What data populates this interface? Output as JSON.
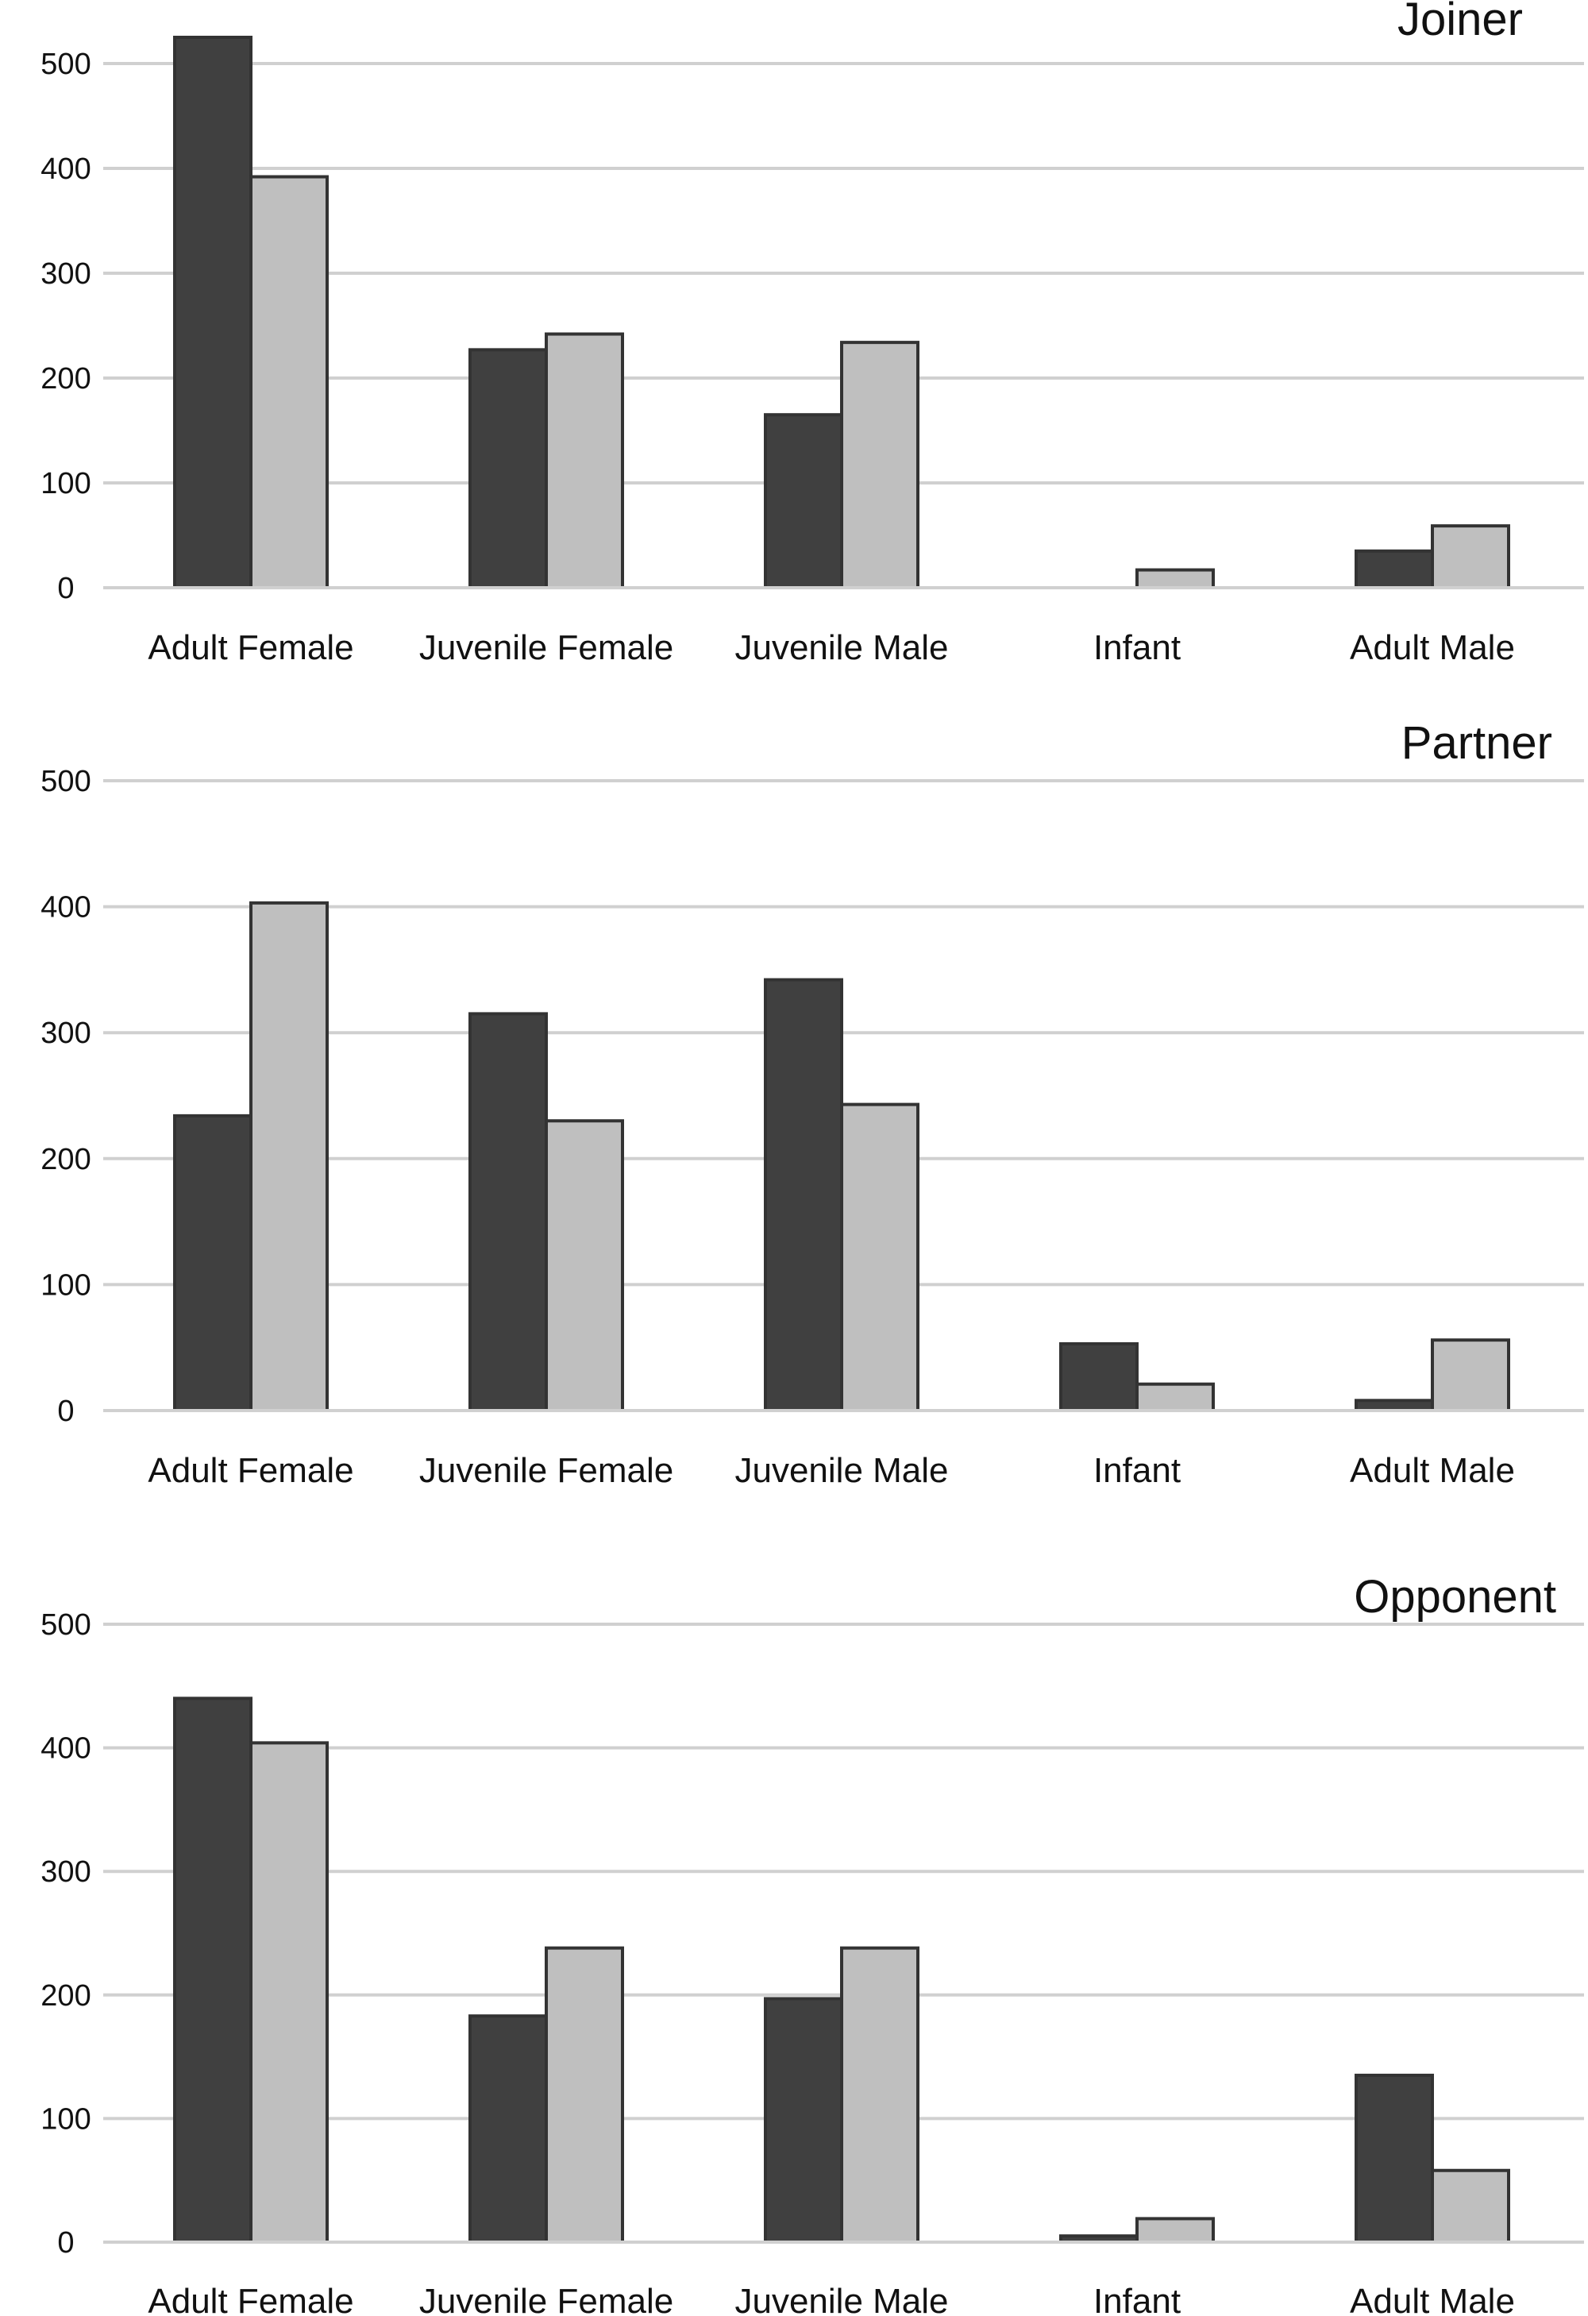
{
  "colors": {
    "series_a": "#404040",
    "series_b": "#bfbfbf",
    "grid": "#d0d0d0",
    "text": "#111111",
    "bar_outline": "#333333"
  },
  "chart_data": [
    {
      "type": "bar",
      "title": "Joiner",
      "categories": [
        "Adult Female",
        "Juvenile Female",
        "Juvenile Male",
        "Infant",
        "Adult Male"
      ],
      "series": [
        {
          "values": [
            525,
            227,
            165,
            0,
            35
          ]
        },
        {
          "values": [
            392,
            242,
            234,
            17,
            59
          ]
        }
      ],
      "yticks": [
        "0",
        "100",
        "200",
        "300",
        "400",
        "500"
      ],
      "ylim": [
        0,
        500
      ],
      "grid": true
    },
    {
      "type": "bar",
      "title": "Partner",
      "categories": [
        "Adult Female",
        "Juvenile Female",
        "Juvenile Male",
        "Infant",
        "Adult Male"
      ],
      "series": [
        {
          "values": [
            234,
            315,
            342,
            53,
            8
          ]
        },
        {
          "values": [
            403,
            230,
            243,
            21,
            56
          ]
        }
      ],
      "yticks": [
        "0",
        "100",
        "200",
        "300",
        "400",
        "500"
      ],
      "ylim": [
        0,
        500
      ],
      "grid": true
    },
    {
      "type": "bar",
      "title": "Opponent",
      "categories": [
        "Adult Female",
        "Juvenile Female",
        "Juvenile Male",
        "Infant",
        "Adult Male"
      ],
      "series": [
        {
          "values": [
            440,
            183,
            197,
            5,
            135
          ]
        },
        {
          "values": [
            404,
            238,
            238,
            19,
            58
          ]
        }
      ],
      "yticks": [
        "0",
        "100",
        "200",
        "300",
        "400",
        "500"
      ],
      "ylim": [
        0,
        500
      ],
      "grid": true
    }
  ]
}
